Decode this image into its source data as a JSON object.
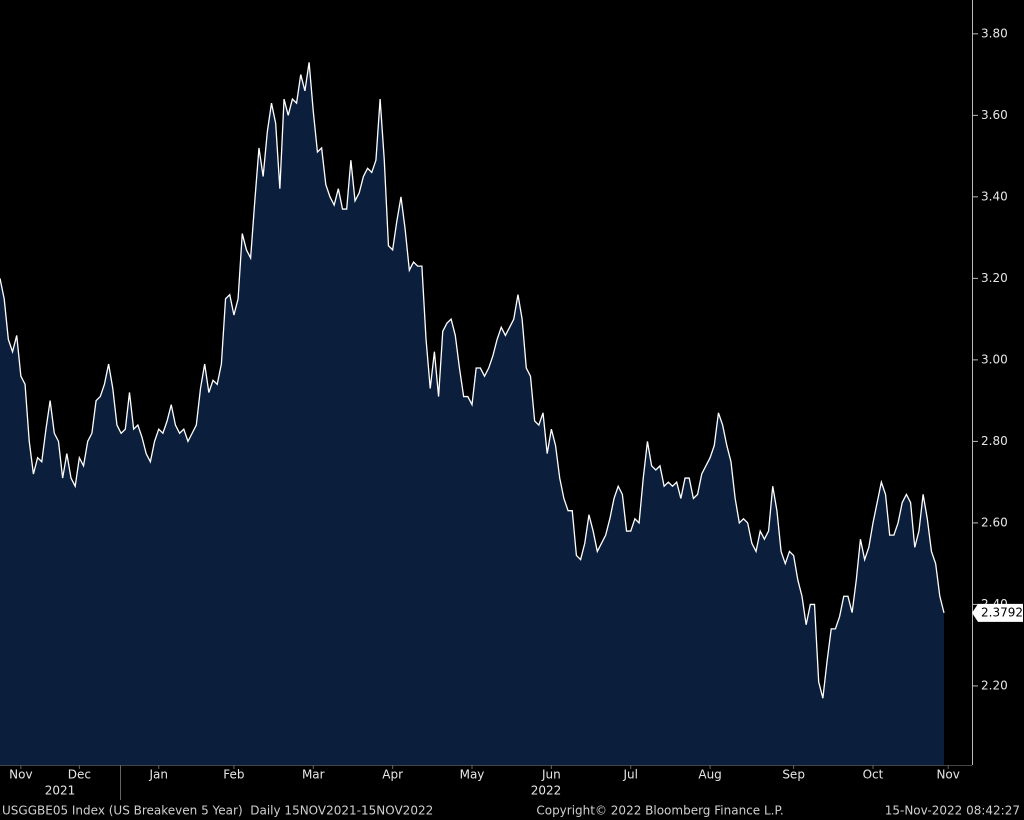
{
  "chart_data": {
    "type": "area",
    "footer_left": "USGGBE05 Index (US Breakeven 5 Year)  Daily 15NOV2021-15NOV2022",
    "footer_center": "Copyright© 2022 Bloomberg Finance L.P.",
    "footer_right": "15-Nov-2022 08:42:27",
    "years": [
      "2021",
      "2022"
    ],
    "color": "#0b1f3d",
    "line_color": "#ffffff",
    "values": [
      3.2,
      3.15,
      3.05,
      3.02,
      3.06,
      2.96,
      2.94,
      2.8,
      2.72,
      2.76,
      2.75,
      2.83,
      2.9,
      2.82,
      2.8,
      2.71,
      2.77,
      2.71,
      2.69,
      2.76,
      2.74,
      2.8,
      2.82,
      2.9,
      2.91,
      2.94,
      2.99,
      2.93,
      2.84,
      2.82,
      2.83,
      2.92,
      2.83,
      2.84,
      2.81,
      2.77,
      2.75,
      2.8,
      2.83,
      2.82,
      2.85,
      2.89,
      2.84,
      2.82,
      2.83,
      2.8,
      2.82,
      2.84,
      2.93,
      2.99,
      2.92,
      2.95,
      2.94,
      2.99,
      3.15,
      3.16,
      3.11,
      3.15,
      3.31,
      3.27,
      3.25,
      3.39,
      3.52,
      3.45,
      3.56,
      3.63,
      3.58,
      3.42,
      3.64,
      3.6,
      3.64,
      3.63,
      3.7,
      3.66,
      3.73,
      3.61,
      3.51,
      3.52,
      3.43,
      3.4,
      3.38,
      3.42,
      3.37,
      3.37,
      3.49,
      3.39,
      3.41,
      3.45,
      3.47,
      3.46,
      3.49,
      3.64,
      3.49,
      3.28,
      3.27,
      3.34,
      3.4,
      3.32,
      3.22,
      3.24,
      3.23,
      3.23,
      3.05,
      2.93,
      3.02,
      2.91,
      3.07,
      3.09,
      3.1,
      3.06,
      2.98,
      2.91,
      2.91,
      2.89,
      2.98,
      2.98,
      2.96,
      2.98,
      3.01,
      3.05,
      3.08,
      3.06,
      3.08,
      3.1,
      3.16,
      3.1,
      2.98,
      2.96,
      2.85,
      2.84,
      2.87,
      2.77,
      2.83,
      2.79,
      2.71,
      2.66,
      2.63,
      2.63,
      2.52,
      2.51,
      2.55,
      2.62,
      2.58,
      2.53,
      2.55,
      2.57,
      2.61,
      2.66,
      2.69,
      2.67,
      2.58,
      2.58,
      2.61,
      2.6,
      2.71,
      2.8,
      2.74,
      2.73,
      2.74,
      2.69,
      2.7,
      2.69,
      2.7,
      2.66,
      2.71,
      2.71,
      2.66,
      2.67,
      2.72,
      2.74,
      2.76,
      2.79,
      2.87,
      2.84,
      2.79,
      2.75,
      2.66,
      2.6,
      2.61,
      2.6,
      2.55,
      2.53,
      2.58,
      2.56,
      2.58,
      2.69,
      2.63,
      2.53,
      2.5,
      2.53,
      2.52,
      2.46,
      2.42,
      2.35,
      2.4,
      2.4,
      2.21,
      2.17,
      2.26,
      2.34,
      2.34,
      2.37,
      2.42,
      2.42,
      2.38,
      2.46,
      2.56,
      2.51,
      2.54,
      2.6,
      2.65,
      2.7,
      2.67,
      2.57,
      2.57,
      2.6,
      2.65,
      2.67,
      2.65,
      2.54,
      2.58,
      2.67,
      2.61,
      2.53,
      2.5,
      2.42,
      2.3792
    ],
    "ylim": [
      2.006,
      3.883
    ],
    "yticks": [
      {
        "value": 2.2,
        "label": "2.20"
      },
      {
        "value": 2.4,
        "label": "2.40"
      },
      {
        "value": 2.6,
        "label": "2.60"
      },
      {
        "value": 2.8,
        "label": "2.80"
      },
      {
        "value": 3.0,
        "label": "3.00"
      },
      {
        "value": 3.2,
        "label": "3.20"
      },
      {
        "value": 3.4,
        "label": "3.40"
      },
      {
        "value": 3.6,
        "label": "3.60"
      },
      {
        "value": 3.8,
        "label": "3.80"
      }
    ],
    "xticks": [
      {
        "value": 5,
        "label": "Nov"
      },
      {
        "value": 19,
        "label": "Dec"
      },
      {
        "value": 38,
        "label": "Jan"
      },
      {
        "value": 56,
        "label": "Feb"
      },
      {
        "value": 75,
        "label": "Mar"
      },
      {
        "value": 94,
        "label": "Apr"
      },
      {
        "value": 113,
        "label": "May"
      },
      {
        "value": 132,
        "label": "Jun"
      },
      {
        "value": 151,
        "label": "Jul"
      },
      {
        "value": 170,
        "label": "Aug"
      },
      {
        "value": 190,
        "label": "Sep"
      },
      {
        "value": 209,
        "label": "Oct"
      },
      {
        "value": 227,
        "label": "Nov"
      }
    ]
  }
}
